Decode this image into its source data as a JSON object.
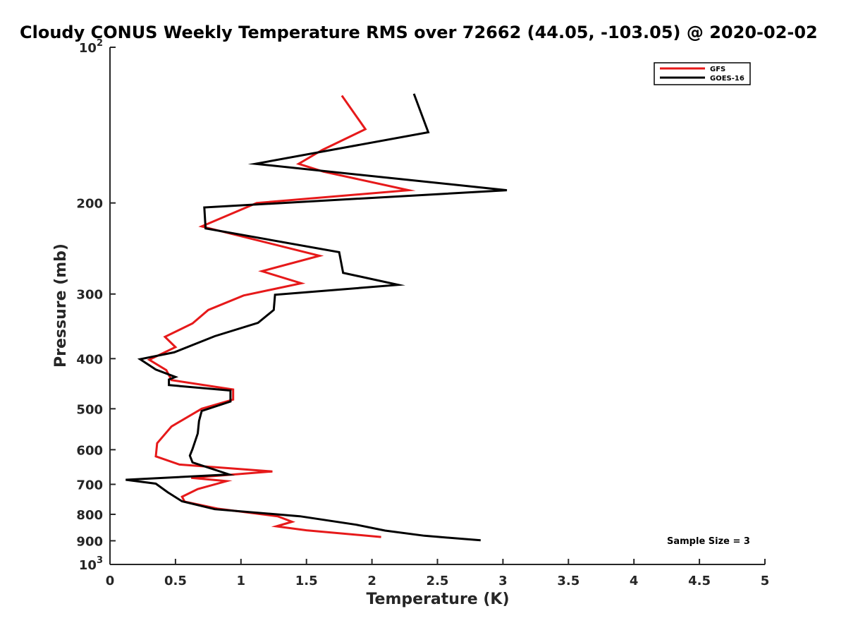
{
  "chart_data": {
    "type": "line",
    "title": "Cloudy CONUS Weekly Temperature RMS over 72662 (44.05, -103.05) @ 2020-02-02",
    "xlabel": "Temperature (K)",
    "ylabel": "Pressure (mb)",
    "xlim": [
      0,
      5
    ],
    "ylim": [
      100,
      1000
    ],
    "y_scale": "log",
    "y_direction": "reversed",
    "x_ticks": [
      "0",
      "0.5",
      "1",
      "1.5",
      "2",
      "2.5",
      "3",
      "3.5",
      "4",
      "4.5",
      "5"
    ],
    "y_ticks": [
      {
        "value": 100,
        "base": "10",
        "exp": "2"
      },
      {
        "value": 200,
        "label": "200"
      },
      {
        "value": 300,
        "label": "300"
      },
      {
        "value": 400,
        "label": "400"
      },
      {
        "value": 500,
        "label": "500"
      },
      {
        "value": 600,
        "label": "600"
      },
      {
        "value": 700,
        "label": "700"
      },
      {
        "value": 800,
        "label": "800"
      },
      {
        "value": 900,
        "label": "900"
      },
      {
        "value": 1000,
        "base": "10",
        "exp": "3"
      }
    ],
    "legend_position": "top-right",
    "annotation": "Sample Size = 3",
    "series": [
      {
        "name": "GFS",
        "color": "#e6191a",
        "points": [
          [
            1.77,
            124
          ],
          [
            1.95,
            144
          ],
          [
            1.62,
            158
          ],
          [
            1.44,
            168
          ],
          [
            1.63,
            174
          ],
          [
            2.28,
            189
          ],
          [
            1.12,
            200
          ],
          [
            0.7,
            222
          ],
          [
            1.6,
            253
          ],
          [
            1.16,
            271
          ],
          [
            1.46,
            286
          ],
          [
            1.02,
            302
          ],
          [
            0.75,
            322
          ],
          [
            0.63,
            342
          ],
          [
            0.42,
            363
          ],
          [
            0.5,
            380
          ],
          [
            0.3,
            402
          ],
          [
            0.43,
            421
          ],
          [
            0.47,
            440
          ],
          [
            0.94,
            459
          ],
          [
            0.94,
            480
          ],
          [
            0.7,
            500
          ],
          [
            0.47,
            541
          ],
          [
            0.36,
            583
          ],
          [
            0.35,
            618
          ],
          [
            0.53,
            641
          ],
          [
            1.24,
            661
          ],
          [
            0.62,
            680
          ],
          [
            0.89,
            690
          ],
          [
            0.67,
            715
          ],
          [
            0.55,
            740
          ],
          [
            0.57,
            756
          ],
          [
            0.82,
            780
          ],
          [
            1.28,
            807
          ],
          [
            1.39,
            827
          ],
          [
            1.27,
            844
          ],
          [
            1.5,
            859
          ],
          [
            2.07,
            885
          ]
        ]
      },
      {
        "name": "GOES-16",
        "color": "#000000",
        "points": [
          [
            2.32,
            123
          ],
          [
            2.43,
            146
          ],
          [
            1.11,
            168
          ],
          [
            3.03,
            189
          ],
          [
            0.72,
            204
          ],
          [
            0.73,
            224
          ],
          [
            1.75,
            249
          ],
          [
            1.78,
            273
          ],
          [
            2.2,
            288
          ],
          [
            1.26,
            301
          ],
          [
            1.25,
            322
          ],
          [
            1.13,
            341
          ],
          [
            0.8,
            362
          ],
          [
            0.49,
            389
          ],
          [
            0.23,
            401
          ],
          [
            0.35,
            420
          ],
          [
            0.5,
            434
          ],
          [
            0.45,
            439
          ],
          [
            0.45,
            450
          ],
          [
            0.92,
            461
          ],
          [
            0.92,
            484
          ],
          [
            0.7,
            505
          ],
          [
            0.68,
            528
          ],
          [
            0.67,
            558
          ],
          [
            0.63,
            598
          ],
          [
            0.61,
            616
          ],
          [
            0.63,
            635
          ],
          [
            0.91,
            670
          ],
          [
            0.12,
            686
          ],
          [
            0.35,
            698
          ],
          [
            0.44,
            725
          ],
          [
            0.55,
            755
          ],
          [
            0.8,
            782
          ],
          [
            1.45,
            807
          ],
          [
            1.88,
            838
          ],
          [
            2.1,
            860
          ],
          [
            2.4,
            880
          ],
          [
            2.83,
            898
          ]
        ]
      }
    ]
  }
}
